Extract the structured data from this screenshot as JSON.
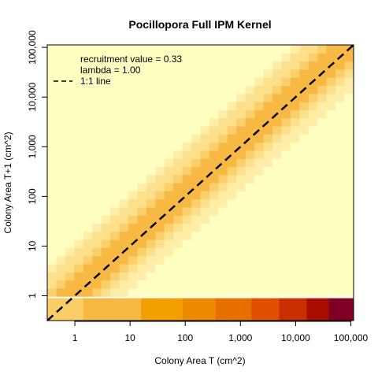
{
  "chart_data": {
    "type": "heatmap",
    "title": "Pocillopora Full IPM Kernel",
    "xlabel": "Colony Area T (cm^2)",
    "ylabel": "Colony Area T+1 (cm^2)",
    "x_scale": "log10",
    "y_scale": "log10",
    "xlim_log10": [
      -0.5,
      5.05
    ],
    "ylim_log10": [
      -0.5,
      5.05
    ],
    "x_ticks": [
      {
        "value": 1,
        "label": "1"
      },
      {
        "value": 10,
        "label": "10"
      },
      {
        "value": 100,
        "label": "100"
      },
      {
        "value": 1000,
        "label": "1,000"
      },
      {
        "value": 10000,
        "label": "10,000"
      },
      {
        "value": 100000,
        "label": "100,000"
      }
    ],
    "y_ticks": [
      {
        "value": 1,
        "label": "1"
      },
      {
        "value": 10,
        "label": "10"
      },
      {
        "value": 100,
        "label": "100"
      },
      {
        "value": 1000,
        "label": "1,000"
      },
      {
        "value": 10000,
        "label": "10,000"
      },
      {
        "value": 100000,
        "label": "100,000"
      }
    ],
    "growth_band": {
      "slope": 1.0,
      "intercept_log10": 0.1,
      "peak_half_width_log10": 0.35,
      "levels_by_distance_log10": [
        {
          "max_dist": 0.35,
          "color": "#F8B944"
        },
        {
          "max_dist": 0.55,
          "color": "#FBCF6A"
        },
        {
          "max_dist": 0.75,
          "color": "#FDE08C"
        },
        {
          "max_dist": 0.95,
          "color": "#FFEDA8"
        },
        {
          "max_dist": 99,
          "color": "#FFFFC2"
        }
      ]
    },
    "recruitment_row": {
      "y_range_log10": [
        -0.5,
        -0.05
      ],
      "segments": [
        {
          "x_from_log10": -0.5,
          "x_to_log10": 0.15,
          "color": "#FBCD67"
        },
        {
          "x_from_log10": 0.15,
          "x_to_log10": 1.2,
          "color": "#F7B842"
        },
        {
          "x_from_log10": 1.2,
          "x_to_log10": 1.95,
          "color": "#F2A000"
        },
        {
          "x_from_log10": 1.95,
          "x_to_log10": 2.55,
          "color": "#EE8A00"
        },
        {
          "x_from_log10": 2.55,
          "x_to_log10": 3.2,
          "color": "#E87000"
        },
        {
          "x_from_log10": 3.2,
          "x_to_log10": 3.7,
          "color": "#E05000"
        },
        {
          "x_from_log10": 3.7,
          "x_to_log10": 4.2,
          "color": "#C82E00"
        },
        {
          "x_from_log10": 4.2,
          "x_to_log10": 4.6,
          "color": "#A80E00"
        },
        {
          "x_from_log10": 4.6,
          "x_to_log10": 5.05,
          "color": "#800026"
        }
      ]
    },
    "reference_line": {
      "label": "1:1 line",
      "slope": 1,
      "intercept_log10": 0,
      "style": "dashed",
      "color": "#000000"
    },
    "legend": {
      "placement": "top-left",
      "lines": [
        "recruitment value = 0.33",
        "lambda = 1.00",
        "1:1 line"
      ]
    },
    "recruitment_value": 0.33,
    "lambda": 1.0
  }
}
